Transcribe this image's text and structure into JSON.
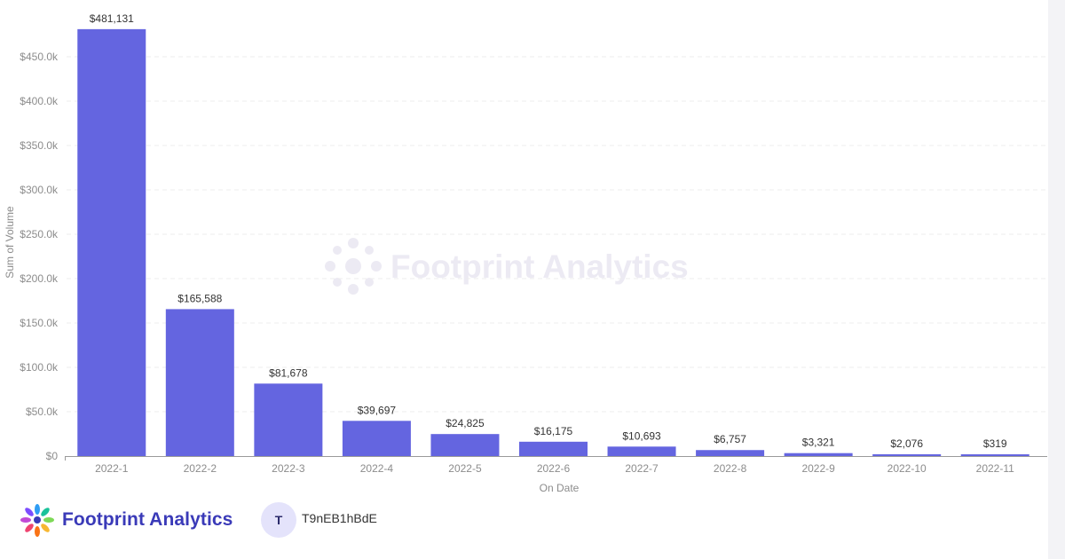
{
  "chart_data": {
    "type": "bar",
    "categories": [
      "2022-1",
      "2022-2",
      "2022-3",
      "2022-4",
      "2022-5",
      "2022-6",
      "2022-7",
      "2022-8",
      "2022-9",
      "2022-10",
      "2022-11"
    ],
    "values": [
      481131,
      165588,
      81678,
      39697,
      24825,
      16175,
      10693,
      6757,
      3321,
      2076,
      319
    ],
    "value_labels": [
      "$481,131",
      "$165,588",
      "$81,678",
      "$39,697",
      "$24,825",
      "$16,175",
      "$10,693",
      "$6,757",
      "$3,321",
      "$2,076",
      "$319"
    ],
    "xlabel": "On Date",
    "ylabel": "Sum of Volume",
    "ylim": [
      0,
      500000
    ],
    "y_ticks": [
      0,
      50000,
      100000,
      150000,
      200000,
      250000,
      300000,
      350000,
      400000,
      450000
    ],
    "y_tick_labels": [
      "$0",
      "$50.0k",
      "$100.0k",
      "$150.0k",
      "$200.0k",
      "$250.0k",
      "$300.0k",
      "$350.0k",
      "$400.0k",
      "$450.0k"
    ],
    "grid": true,
    "bar_color": "#6465e0"
  },
  "watermark": {
    "text": "Footprint Analytics"
  },
  "footer": {
    "brand": "Footprint Analytics",
    "avatar_letter": "T",
    "user_id": "T9nEB1hBdE"
  }
}
